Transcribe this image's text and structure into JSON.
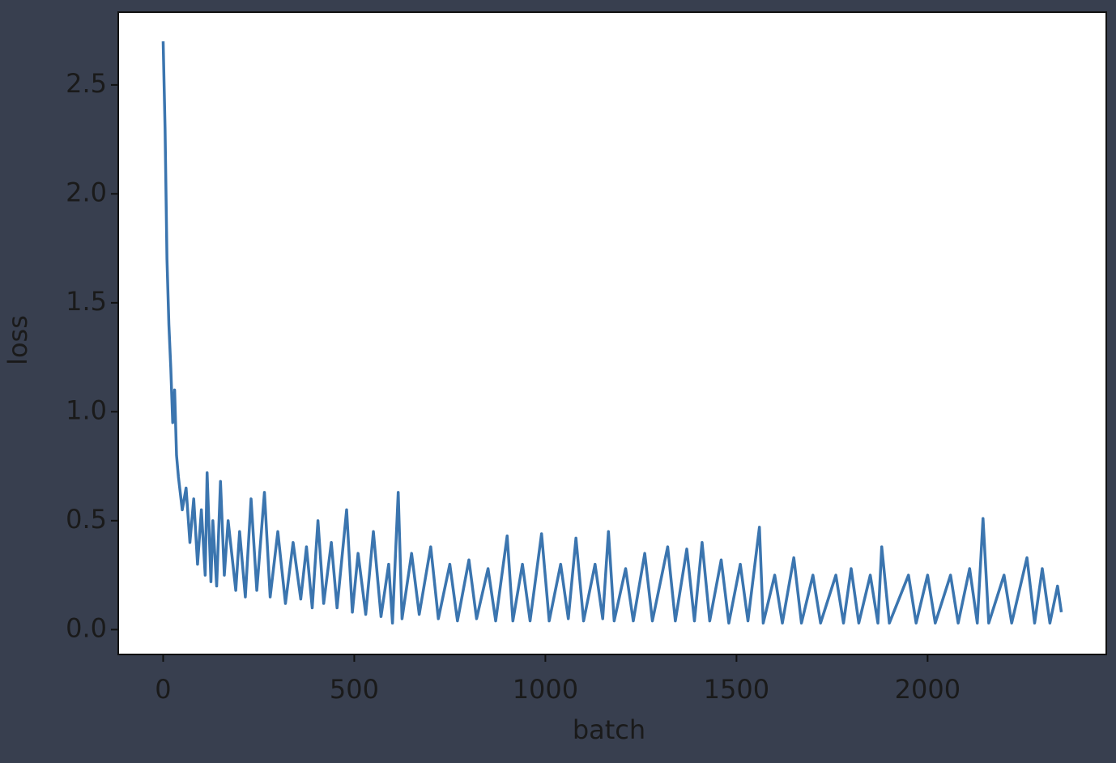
{
  "chart_data": {
    "type": "line",
    "xlabel": "batch",
    "ylabel": "loss",
    "x": [
      0,
      5,
      10,
      15,
      20,
      25,
      30,
      35,
      40,
      50,
      60,
      70,
      80,
      90,
      100,
      110,
      115,
      125,
      130,
      140,
      150,
      160,
      170,
      190,
      200,
      215,
      230,
      245,
      265,
      280,
      300,
      320,
      340,
      360,
      375,
      390,
      405,
      420,
      440,
      455,
      480,
      495,
      510,
      530,
      550,
      570,
      590,
      600,
      615,
      625,
      650,
      670,
      700,
      720,
      750,
      770,
      800,
      820,
      850,
      870,
      900,
      915,
      940,
      960,
      990,
      1010,
      1040,
      1060,
      1080,
      1100,
      1130,
      1150,
      1165,
      1180,
      1210,
      1230,
      1260,
      1280,
      1320,
      1340,
      1370,
      1390,
      1410,
      1430,
      1460,
      1480,
      1510,
      1530,
      1560,
      1570,
      1600,
      1620,
      1650,
      1670,
      1700,
      1720,
      1760,
      1780,
      1800,
      1820,
      1850,
      1870,
      1880,
      1900,
      1950,
      1970,
      2000,
      2020,
      2060,
      2080,
      2110,
      2130,
      2145,
      2160,
      2200,
      2220,
      2260,
      2280,
      2300,
      2320,
      2340,
      2350
    ],
    "series": [
      {
        "color": "#3b75af",
        "values": [
          2.7,
          2.3,
          1.7,
          1.4,
          1.2,
          0.95,
          1.1,
          0.8,
          0.7,
          0.55,
          0.65,
          0.4,
          0.6,
          0.3,
          0.55,
          0.25,
          0.72,
          0.22,
          0.5,
          0.2,
          0.68,
          0.25,
          0.5,
          0.18,
          0.45,
          0.15,
          0.6,
          0.18,
          0.63,
          0.15,
          0.45,
          0.12,
          0.4,
          0.14,
          0.38,
          0.1,
          0.5,
          0.12,
          0.4,
          0.1,
          0.55,
          0.08,
          0.35,
          0.07,
          0.45,
          0.06,
          0.3,
          0.03,
          0.63,
          0.05,
          0.35,
          0.07,
          0.38,
          0.05,
          0.3,
          0.04,
          0.32,
          0.05,
          0.28,
          0.04,
          0.43,
          0.04,
          0.3,
          0.04,
          0.44,
          0.04,
          0.3,
          0.05,
          0.42,
          0.04,
          0.3,
          0.05,
          0.45,
          0.04,
          0.28,
          0.04,
          0.35,
          0.04,
          0.38,
          0.04,
          0.37,
          0.04,
          0.4,
          0.04,
          0.32,
          0.03,
          0.3,
          0.04,
          0.47,
          0.03,
          0.25,
          0.03,
          0.33,
          0.03,
          0.25,
          0.03,
          0.25,
          0.03,
          0.28,
          0.03,
          0.25,
          0.03,
          0.38,
          0.03,
          0.25,
          0.03,
          0.25,
          0.03,
          0.25,
          0.03,
          0.28,
          0.03,
          0.51,
          0.03,
          0.25,
          0.03,
          0.33,
          0.03,
          0.28,
          0.03,
          0.2,
          0.08
        ]
      }
    ],
    "xlim": [
      -117.5,
      2467.5
    ],
    "xticks": [
      0,
      500,
      1000,
      1500,
      2000
    ],
    "ylim": [
      -0.114,
      2.834
    ],
    "yticks": [
      {
        "value": 0,
        "label": "0.0"
      },
      0.5,
      {
        "value": 1,
        "label": "1.0"
      },
      1.5,
      {
        "value": 2,
        "label": "2.0"
      },
      2.5
    ]
  }
}
